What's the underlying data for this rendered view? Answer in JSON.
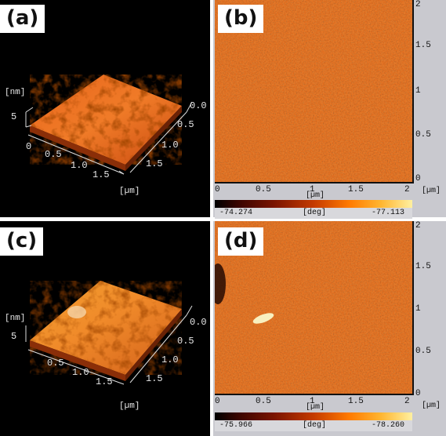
{
  "panels": [
    {
      "id": "a",
      "label": "(a)",
      "unit_z": "[nm]",
      "z_tick": "5",
      "x_ticks": [
        "0",
        "0.5",
        "1.0",
        "1.5"
      ],
      "y_ticks": [
        "0.0",
        "0.5",
        "1.0",
        "1.5"
      ],
      "unit_xy": "[µm]"
    },
    {
      "id": "b",
      "label": "(b)",
      "y_ticks": [
        "2",
        "1.5",
        "1",
        "0.5",
        "0"
      ],
      "x_ticks": [
        "0",
        "0.5",
        "1",
        "1.5",
        "2"
      ],
      "unit_x": "[µm]",
      "unit_corner": "[µm]",
      "scale_min": "-74.274",
      "scale_unit": "[deg]",
      "scale_max": "-77.113"
    },
    {
      "id": "c",
      "label": "(c)",
      "unit_z": "[nm]",
      "z_tick": "5",
      "x_ticks": [
        "0.5",
        "1.0",
        "1.5"
      ],
      "y_ticks": [
        "0.0",
        "0.5",
        "1.0",
        "1.5"
      ],
      "unit_xy": "[µm]"
    },
    {
      "id": "d",
      "label": "(d)",
      "y_ticks": [
        "2",
        "1.5",
        "1",
        "0.5",
        "0"
      ],
      "x_ticks": [
        "0",
        "0.5",
        "1",
        "1.5",
        "2"
      ],
      "unit_x": "[µm]",
      "unit_corner": "[µm]",
      "scale_min": "-75.966",
      "scale_unit": "[deg]",
      "scale_max": "-78.260"
    }
  ],
  "colors": {
    "dark_bg": "#000000",
    "map_orange": "#e06a1c",
    "axis_bg": "#c9c9cf"
  }
}
